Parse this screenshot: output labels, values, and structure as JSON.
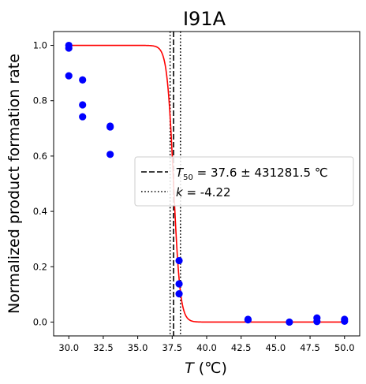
{
  "chart_data": {
    "type": "scatter",
    "title": "I91A",
    "xlabel": {
      "symbol": "T",
      "unit": " (℃)"
    },
    "ylabel": "Normalized product formation rate",
    "xlim": [
      28.9,
      51.1
    ],
    "ylim": [
      -0.05,
      1.05
    ],
    "xticks": [
      30.0,
      32.5,
      35.0,
      37.5,
      40.0,
      42.5,
      45.0,
      47.5,
      50.0
    ],
    "xtick_labels": [
      "30.0",
      "32.5",
      "35.0",
      "37.5",
      "40.0",
      "42.5",
      "45.0",
      "47.5",
      "50.0"
    ],
    "yticks": [
      0.0,
      0.2,
      0.4,
      0.6,
      0.8,
      1.0
    ],
    "ytick_labels": [
      "0.0",
      "0.2",
      "0.4",
      "0.6",
      "0.8",
      "1.0"
    ],
    "grid": false,
    "legend_position": "center-right",
    "points": {
      "color": "#0000ff",
      "x": [
        30,
        30,
        30,
        31,
        31,
        31,
        33,
        33,
        33,
        38,
        38,
        38,
        43,
        43,
        46,
        48,
        48,
        50,
        50
      ],
      "y": [
        1.0,
        0.99,
        0.89,
        0.875,
        0.785,
        0.742,
        0.708,
        0.705,
        0.606,
        0.222,
        0.138,
        0.102,
        0.01,
        0.008,
        0.0,
        0.015,
        0.002,
        0.01,
        0.003
      ]
    },
    "fit_curve": {
      "color": "#ff0000",
      "model": "logistic",
      "t50": 37.6,
      "k": -4.22
    },
    "vlines": [
      {
        "x": 37.6,
        "style": "dashed",
        "legend": {
          "symbol": "T",
          "sub": "50",
          "rest": " = 37.6 ± 431281.5 ℃"
        }
      },
      {
        "x": 38.1,
        "style": "dotted",
        "legend": {
          "symbol": "k",
          "rest": " = -4.22"
        }
      },
      {
        "x": 37.35,
        "style": "dotted",
        "legend": null
      }
    ]
  }
}
